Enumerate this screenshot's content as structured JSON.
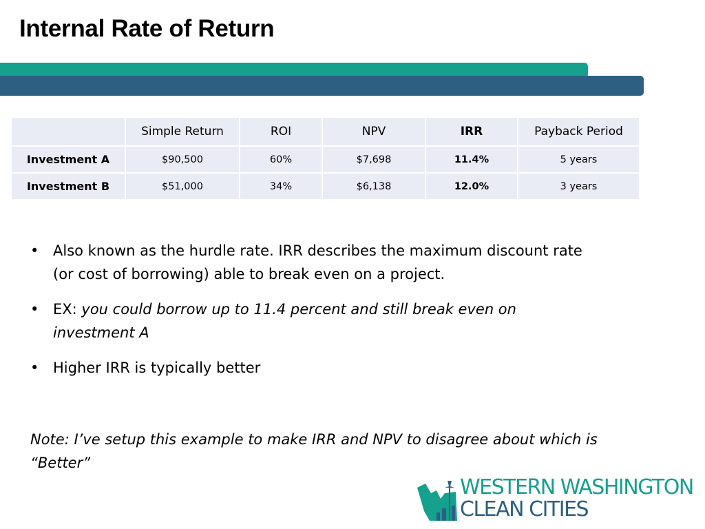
{
  "slide": {
    "title": "Internal Rate of Return"
  },
  "table": {
    "headers": [
      "",
      "Simple Return",
      "ROI",
      "NPV",
      "IRR",
      "Payback Period"
    ],
    "rows": [
      {
        "label": "Investment A",
        "simple_return": "$90,500",
        "roi": "60%",
        "npv": "$7,698",
        "irr": "11.4%",
        "payback": "5 years"
      },
      {
        "label": "Investment B",
        "simple_return": "$51,000",
        "roi": "34%",
        "npv": "$6,138",
        "irr": "12.0%",
        "payback": "3 years"
      }
    ]
  },
  "bullets": {
    "marker": "•",
    "b1": "Also known as the hurdle rate. IRR describes the maximum discount rate (or cost of borrowing) able to break even on a project.",
    "b2_prefix": "EX: ",
    "b2_italic": "you could borrow up to 11.4 percent and still break even on investment A",
    "b3": "Higher IRR is typically better"
  },
  "note": "Note: I’ve setup this example to make IRR and NPV to disagree about which is “Better”",
  "logo": {
    "line1": "WESTERN WASHINGTON",
    "line2": "CLEAN CITIES",
    "colors": {
      "teal": "#16a08e",
      "blue": "#2c5f82"
    }
  }
}
